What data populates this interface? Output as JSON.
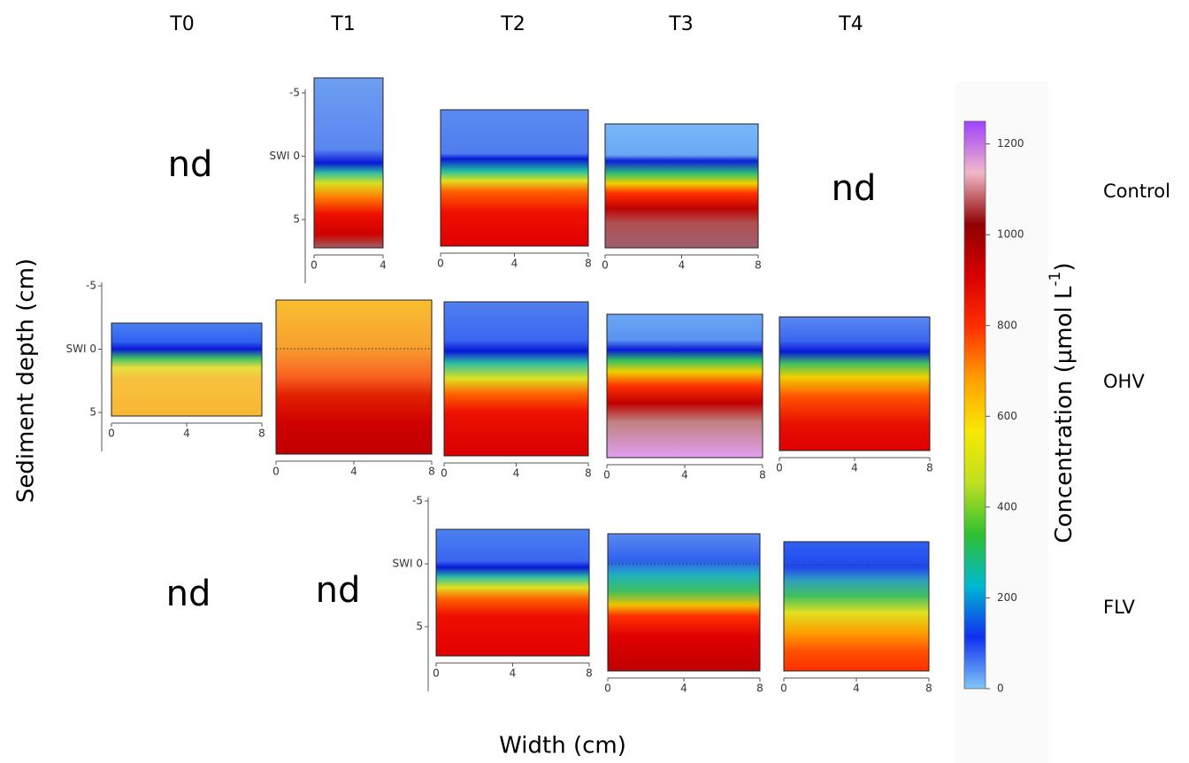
{
  "columns": [
    "T0",
    "T1",
    "T2",
    "T3",
    "T4"
  ],
  "rows": [
    "Control",
    "OHV",
    "FLV"
  ],
  "panels": [
    [
      {
        "label": "nd"
      },
      {
        "xlim": [
          0,
          4
        ],
        "xticks": [
          0,
          4
        ],
        "yticks": [
          -5,
          {
            "value": 0,
            "label": "SWI 0"
          },
          5
        ]
      },
      {
        "xlim": [
          0,
          8
        ],
        "xticks": [
          0,
          4,
          8
        ]
      },
      {
        "xlim": [
          0,
          8
        ],
        "xticks": [
          0,
          4,
          8
        ]
      },
      {
        "label": "nd"
      }
    ],
    [
      {
        "xlim": [
          0,
          8
        ],
        "xticks": [
          0,
          4,
          8
        ],
        "yticks": [
          -5,
          {
            "value": 0,
            "label": "SWI 0"
          },
          5
        ]
      },
      {
        "xlim": [
          0,
          8
        ],
        "xticks": [
          0,
          4,
          8
        ]
      },
      {
        "xlim": [
          0,
          8
        ],
        "xticks": [
          0,
          4,
          8
        ]
      },
      {
        "xlim": [
          0,
          8
        ],
        "xticks": [
          0,
          4,
          8
        ]
      },
      {
        "xlim": [
          0,
          8
        ],
        "xticks": [
          0,
          4,
          8
        ]
      }
    ],
    [
      {
        "label": "nd"
      },
      {
        "label": "nd"
      },
      {
        "xlim": [
          0,
          8
        ],
        "xticks": [
          0,
          4,
          8
        ],
        "yticks": [
          -5,
          {
            "value": 0,
            "label": "SWI 0"
          },
          5
        ]
      },
      {
        "xlim": [
          0,
          8
        ],
        "xticks": [
          0,
          4,
          8
        ]
      },
      {
        "xlim": [
          0,
          8
        ],
        "xticks": [
          0,
          4,
          8
        ]
      }
    ]
  ],
  "ylabel": "Sediment depth (cm)",
  "xlabel": "Width (cm)",
  "colorbar": {
    "label_parts": [
      "Concentration (µmol L",
      "-1",
      ")"
    ],
    "ylim": [
      0,
      1250
    ],
    "yticks": [
      0,
      200,
      400,
      600,
      800,
      1000,
      1200
    ],
    "colormap": [
      "#80c8f8",
      "#1030f0",
      "#00b8d0",
      "#30c030",
      "#c0e020",
      "#f8e800",
      "#ffa000",
      "#ff3000",
      "#d80000",
      "#900000",
      "#f0b8c8",
      "#a040ff"
    ]
  }
}
